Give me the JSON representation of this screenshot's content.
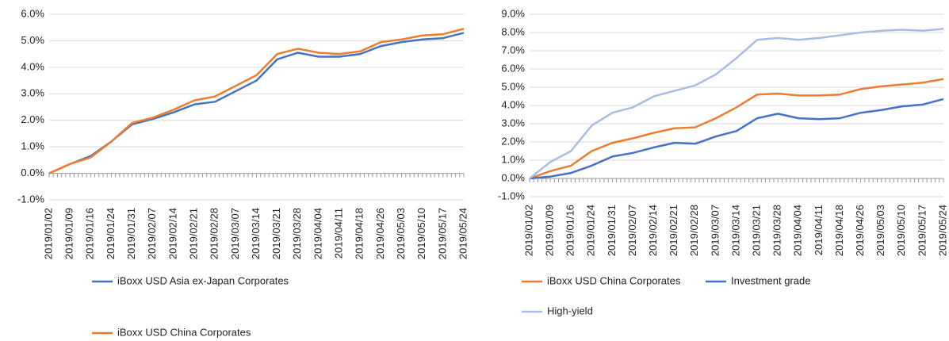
{
  "chart_data": [
    {
      "type": "line",
      "categories": [
        "2019/01/02",
        "2019/01/09",
        "2019/01/16",
        "2019/01/24",
        "2019/01/31",
        "2019/02/07",
        "2019/02/14",
        "2019/02/21",
        "2019/02/28",
        "2019/03/07",
        "2019/03/14",
        "2019/03/21",
        "2019/03/28",
        "2019/04/04",
        "2019/04/11",
        "2019/04/18",
        "2019/04/26",
        "2019/05/03",
        "2019/05/10",
        "2019/05/17",
        "2019/05/24"
      ],
      "series": [
        {
          "name": "iBoxx USD Asia ex-Japan Corporates",
          "color": "#4472c4",
          "values": [
            0.0,
            0.35,
            0.65,
            1.2,
            1.85,
            2.05,
            2.3,
            2.6,
            2.7,
            3.1,
            3.5,
            4.3,
            4.55,
            4.4,
            4.4,
            4.5,
            4.8,
            4.95,
            5.05,
            5.1,
            5.3
          ]
        },
        {
          "name": "iBoxx USD China Corporates",
          "color": "#ed7d31",
          "values": [
            0.0,
            0.35,
            0.6,
            1.2,
            1.9,
            2.1,
            2.4,
            2.75,
            2.9,
            3.3,
            3.7,
            4.5,
            4.7,
            4.55,
            4.5,
            4.6,
            4.95,
            5.05,
            5.2,
            5.25,
            5.45
          ]
        }
      ],
      "ylim": [
        -1,
        6
      ],
      "yticks": [
        {
          "value": -1,
          "label": "-1.0%"
        },
        {
          "value": 0,
          "label": "0.0%"
        },
        {
          "value": 1,
          "label": "1.0%"
        },
        {
          "value": 2,
          "label": "2.0%"
        },
        {
          "value": 3,
          "label": "3.0%"
        },
        {
          "value": 4,
          "label": "4.0%"
        },
        {
          "value": 5,
          "label": "5.0%"
        },
        {
          "value": 6,
          "label": "6.0%"
        }
      ],
      "grid": true,
      "legend": "bottom"
    },
    {
      "type": "line",
      "categories": [
        "2019/01/02",
        "2019/01/09",
        "2019/01/16",
        "2019/01/24",
        "2019/01/31",
        "2019/02/07",
        "2019/02/14",
        "2019/02/21",
        "2019/02/28",
        "2019/03/07",
        "2019/03/14",
        "2019/03/21",
        "2019/03/28",
        "2019/04/04",
        "2019/04/11",
        "2019/04/18",
        "2019/04/26",
        "2019/05/03",
        "2019/05/10",
        "2019/05/17",
        "2019/05/24"
      ],
      "series": [
        {
          "name": "iBoxx USD China Corporates",
          "color": "#ed7d31",
          "values": [
            0.0,
            0.4,
            0.7,
            1.5,
            1.95,
            2.2,
            2.5,
            2.75,
            2.8,
            3.3,
            3.9,
            4.6,
            4.65,
            4.55,
            4.55,
            4.6,
            4.9,
            5.05,
            5.15,
            5.25,
            5.45
          ]
        },
        {
          "name": "Investment grade",
          "color": "#4472c4",
          "values": [
            0.0,
            0.1,
            0.3,
            0.7,
            1.2,
            1.4,
            1.7,
            1.95,
            1.9,
            2.3,
            2.6,
            3.3,
            3.55,
            3.3,
            3.25,
            3.3,
            3.6,
            3.75,
            3.95,
            4.05,
            4.35
          ]
        },
        {
          "name": "High-yield",
          "color": "#a9bce4",
          "values": [
            0.0,
            0.9,
            1.5,
            2.9,
            3.6,
            3.9,
            4.5,
            4.8,
            5.1,
            5.7,
            6.6,
            7.6,
            7.7,
            7.6,
            7.7,
            7.85,
            8.0,
            8.1,
            8.15,
            8.1,
            8.2
          ]
        }
      ],
      "ylim": [
        -1,
        9
      ],
      "yticks": [
        {
          "value": -1,
          "label": "-1.0%"
        },
        {
          "value": 0,
          "label": "0.0%"
        },
        {
          "value": 1,
          "label": "1.0%"
        },
        {
          "value": 2,
          "label": "2.0%"
        },
        {
          "value": 3,
          "label": "3.0%"
        },
        {
          "value": 4,
          "label": "4.0%"
        },
        {
          "value": 5,
          "label": "5.0%"
        },
        {
          "value": 6,
          "label": "6.0%"
        },
        {
          "value": 7,
          "label": "7.0%"
        },
        {
          "value": 8,
          "label": "8.0%"
        },
        {
          "value": 9,
          "label": "9.0%"
        }
      ],
      "grid": true,
      "legend": "bottom"
    }
  ]
}
